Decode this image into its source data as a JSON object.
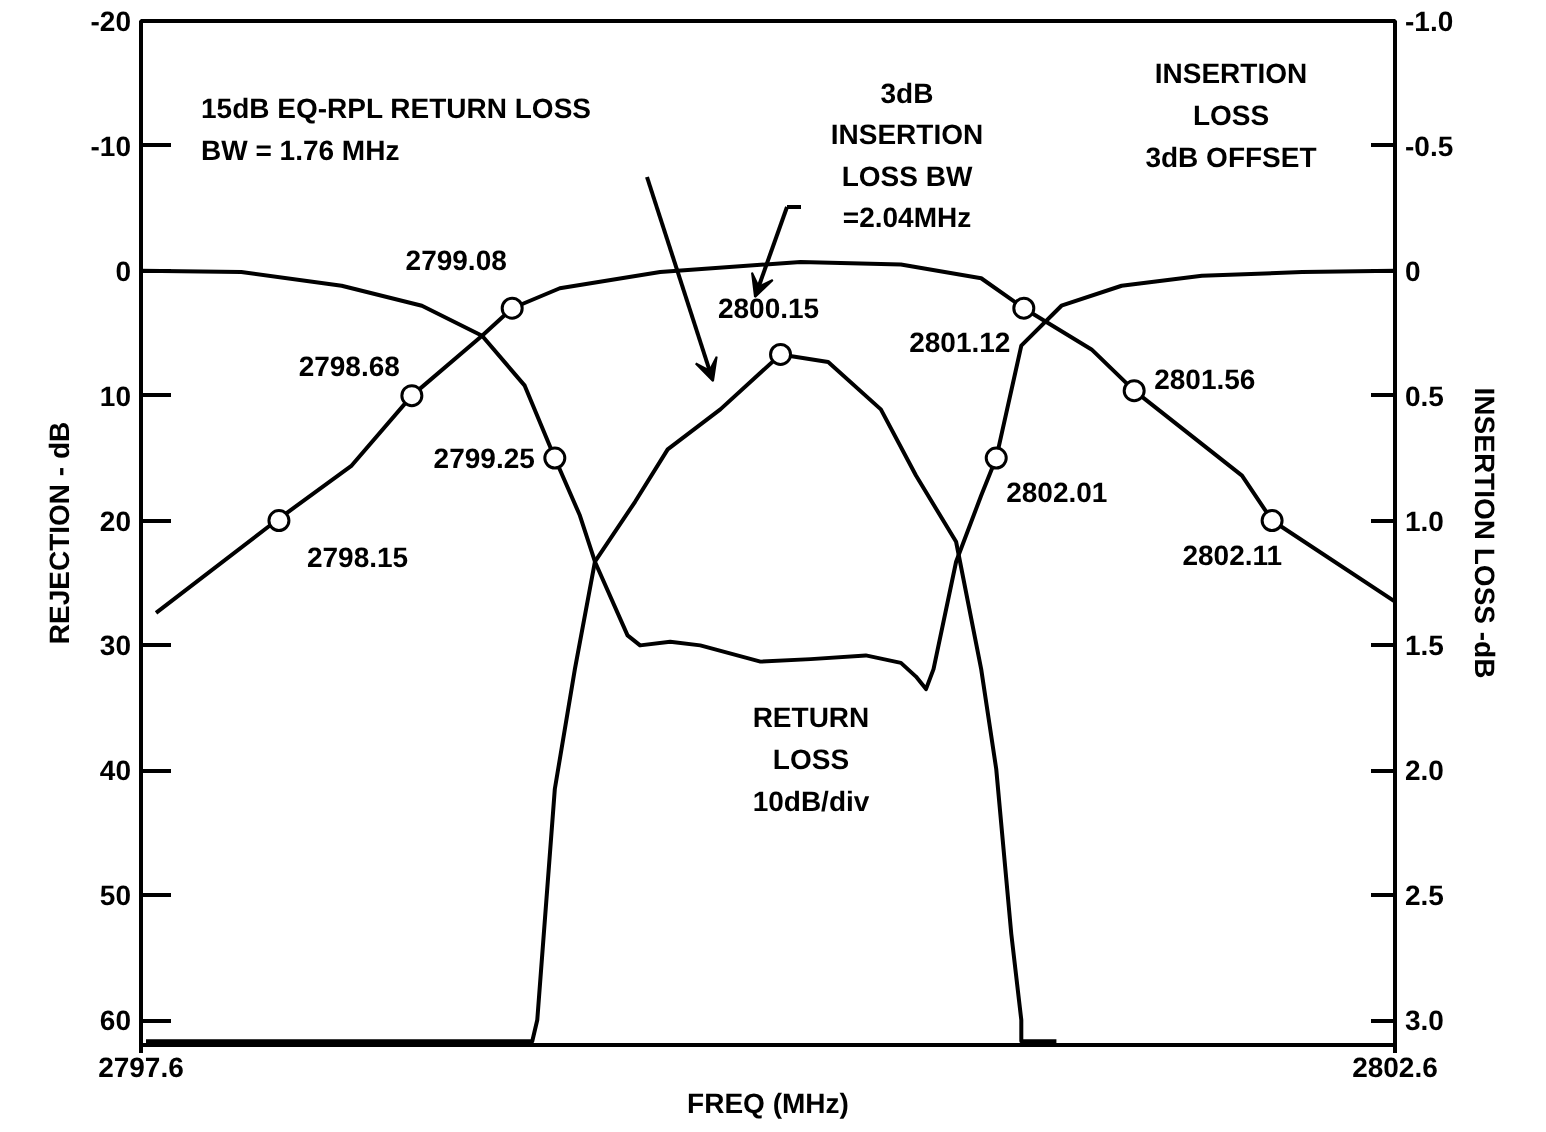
{
  "chart_data": {
    "type": "line",
    "xlabel": "FREQ (MHz)",
    "ylabel": "REJECTION - dB",
    "y2label": "INSERTION LOSS -dB",
    "xlim": [
      2797.6,
      2802.6
    ],
    "ylim": [
      62,
      -20
    ],
    "yticks": [
      -20,
      -10,
      0,
      10,
      20,
      30,
      40,
      50,
      60
    ],
    "y2lim": [
      3.1,
      -1.0
    ],
    "y2ticks": [
      {
        "value": -1.0,
        "label": "-1.0"
      },
      -0.5,
      0,
      0.5,
      {
        "value": 1.0,
        "label": "1.0"
      },
      1.5,
      {
        "value": 2.0,
        "label": "2.0"
      },
      2.5,
      {
        "value": 3.0,
        "label": "3.0"
      }
    ],
    "xticks": [
      2797.6,
      2802.6
    ],
    "grid": false,
    "line_style": "solid",
    "series": [
      {
        "type": "line",
        "color": "#000000",
        "x": [
          2797.66,
          2798.14,
          2798.44,
          2798.68,
          2798.96,
          2799.08,
          2799.27,
          2799.67,
          2800.23,
          2800.63,
          2800.95,
          2801.12,
          2801.39,
          2801.56,
          2801.99,
          2802.11,
          2802.6
        ],
        "values": [
          27.4,
          20,
          15.6,
          10,
          5.2,
          3,
          1.4,
          0.1,
          -0.7,
          -0.5,
          0.6,
          3,
          6.3,
          9.6,
          16.4,
          20,
          26.5
        ]
      },
      {
        "type": "line",
        "color": "#000000",
        "x": [
          2797.6,
          2798.0,
          2798.4,
          2798.72,
          2798.96,
          2799.13,
          2799.25,
          2799.35,
          2799.41,
          2799.54,
          2799.59,
          2799.71,
          2799.83,
          2800.07,
          2800.27,
          2800.49,
          2800.63,
          2800.69,
          2800.73,
          2800.76,
          2800.85,
          2800.95,
          2801.01,
          2801.11,
          2801.27,
          2801.51,
          2801.83,
          2802.23,
          2802.6
        ],
        "values": [
          0,
          0.1,
          1.2,
          2.8,
          5.2,
          9.2,
          15,
          19.6,
          23.3,
          29.2,
          30,
          29.7,
          30,
          31.3,
          31.1,
          30.8,
          31.4,
          32.5,
          33.5,
          31.9,
          23.3,
          18,
          15,
          6,
          2.8,
          1.2,
          0.4,
          0.1,
          0
        ]
      },
      {
        "type": "line",
        "color": "#000000",
        "x": [
          2797.62,
          2799.16,
          2799.18,
          2799.25,
          2799.33,
          2799.41,
          2799.57,
          2799.7,
          2799.91,
          2800.15,
          2800.34,
          2800.55,
          2800.69,
          2800.85,
          2800.95,
          2801.01,
          2801.07,
          2801.11,
          2801.11,
          2801.25
        ],
        "values": [
          61.7,
          61.7,
          60,
          41.5,
          31.9,
          23.3,
          18.5,
          14.3,
          11.1,
          6.7,
          7.3,
          11.1,
          16.4,
          21.7,
          31.9,
          39.9,
          53.1,
          60,
          61.7,
          61.7
        ]
      },
      {
        "type": "scatter",
        "color": "#000000",
        "marker": "circle",
        "x": [
          2798.15,
          2798.68,
          2799.08,
          2799.25,
          2800.15,
          2801.12,
          2801.01,
          2801.56,
          2802.11
        ],
        "values": [
          20,
          10,
          3,
          15,
          6.7,
          3,
          15,
          9.6,
          20
        ]
      }
    ],
    "annotations": [
      "15dB EQ-RPL RETURN LOSS\nBW = 1.76 MHz",
      "3dB\nINSERTION\nLOSS BW\n=2.04MHz",
      "INSERTION\nLOSS\n3dB OFFSET",
      "RETURN\nLOSS\n10dB/div",
      {
        "text": "2798.15",
        "x": 2798.15,
        "y": 20
      },
      {
        "text": "2798.68",
        "x": 2798.68,
        "y": 10
      },
      {
        "text": "2799.08",
        "x": 2799.08,
        "y": 3
      },
      {
        "text": "2799.25",
        "x": 2799.25,
        "y": 15
      },
      {
        "text": "2800.15",
        "x": 2800.15,
        "y": 6.7
      },
      {
        "text": "2801.12",
        "x": 2801.12,
        "y": 3
      },
      {
        "text": "2802.01",
        "x": 2801.01,
        "y": 15
      },
      {
        "text": "2801.56",
        "x": 2801.56,
        "y": 9.6
      },
      {
        "text": "2802.11",
        "x": 2802.11,
        "y": 20
      }
    ]
  }
}
